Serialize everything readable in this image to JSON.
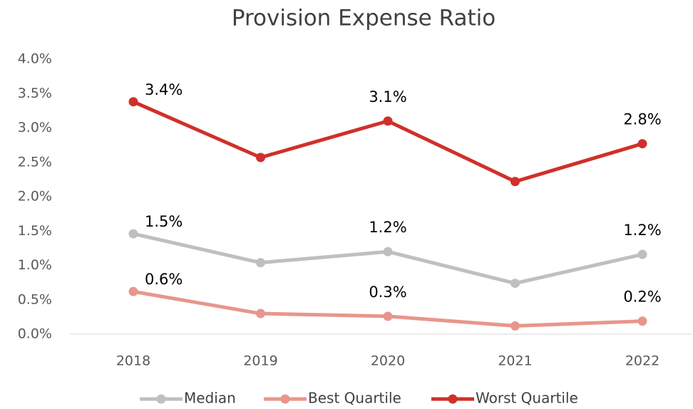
{
  "chart_data": {
    "type": "line",
    "title": "Provision Expense Ratio",
    "categories": [
      "2018",
      "2019",
      "2020",
      "2021",
      "2022"
    ],
    "series": [
      {
        "name": "Median",
        "color": "#bfbfbf",
        "values": [
          1.46,
          1.04,
          1.2,
          0.74,
          1.16
        ],
        "value_labels": [
          "1.5%",
          null,
          "1.2%",
          null,
          "1.2%"
        ]
      },
      {
        "name": "Best Quartile",
        "color": "#e8968d",
        "values": [
          0.62,
          0.3,
          0.26,
          0.12,
          0.19
        ],
        "value_labels": [
          "0.6%",
          null,
          "0.3%",
          null,
          "0.2%"
        ]
      },
      {
        "name": "Worst Quartile",
        "color": "#d0302a",
        "values": [
          3.38,
          2.57,
          3.1,
          2.22,
          2.77
        ],
        "value_labels": [
          "3.4%",
          null,
          "3.1%",
          null,
          "2.8%"
        ]
      }
    ],
    "ylim": [
      0,
      4
    ],
    "yticks": [
      {
        "value": 0,
        "label": "0.0%"
      },
      {
        "value": 0.5,
        "label": "0.5%"
      },
      {
        "value": 1,
        "label": "1.0%"
      },
      {
        "value": 1.5,
        "label": "1.5%"
      },
      {
        "value": 2,
        "label": "2.0%"
      },
      {
        "value": 2.5,
        "label": "2.5%"
      },
      {
        "value": 3,
        "label": "3.0%"
      },
      {
        "value": 3.5,
        "label": "3.5%"
      },
      {
        "value": 4,
        "label": "4.0%"
      }
    ],
    "legend": "bottom"
  }
}
